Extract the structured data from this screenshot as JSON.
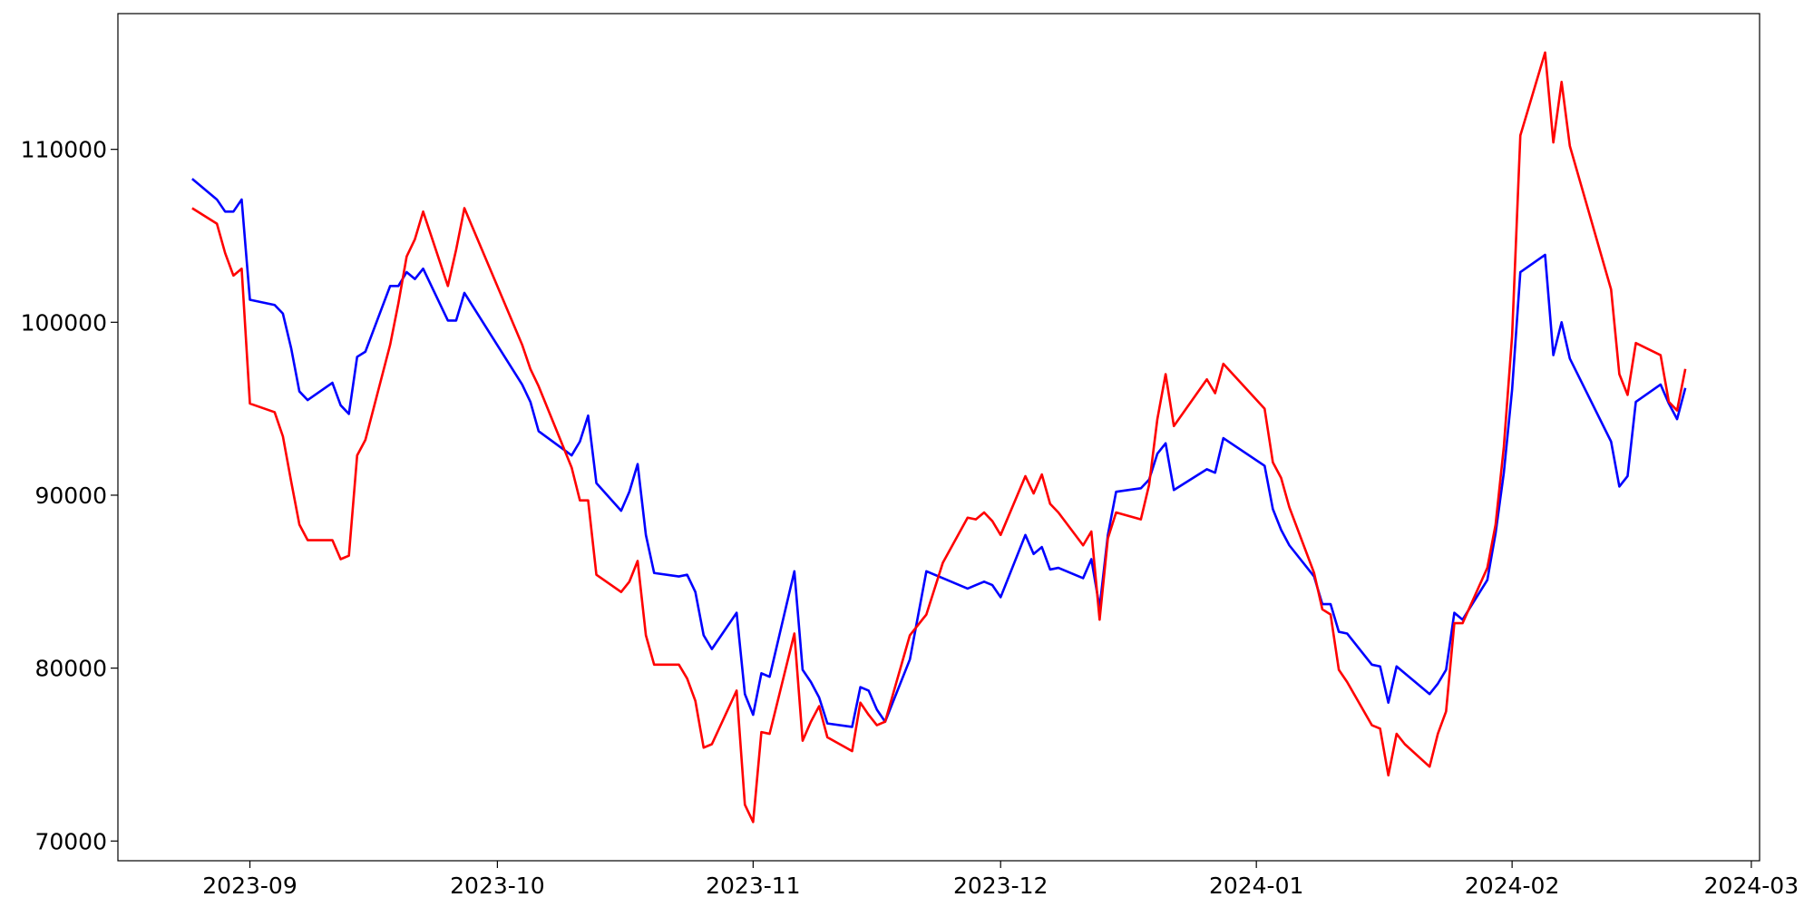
{
  "chart_data": {
    "type": "line",
    "x": [
      "2023-08-25",
      "2023-08-28",
      "2023-08-29",
      "2023-08-30",
      "2023-08-31",
      "2023-09-01",
      "2023-09-04",
      "2023-09-05",
      "2023-09-06",
      "2023-09-07",
      "2023-09-08",
      "2023-09-11",
      "2023-09-12",
      "2023-09-13",
      "2023-09-14",
      "2023-09-15",
      "2023-09-18",
      "2023-09-19",
      "2023-09-20",
      "2023-09-21",
      "2023-09-22",
      "2023-09-25",
      "2023-09-26",
      "2023-09-27",
      "2023-10-04",
      "2023-10-05",
      "2023-10-06",
      "2023-10-10",
      "2023-10-11",
      "2023-10-12",
      "2023-10-13",
      "2023-10-16",
      "2023-10-17",
      "2023-10-18",
      "2023-10-19",
      "2023-10-20",
      "2023-10-23",
      "2023-10-24",
      "2023-10-25",
      "2023-10-26",
      "2023-10-27",
      "2023-10-30",
      "2023-10-31",
      "2023-11-01",
      "2023-11-02",
      "2023-11-03",
      "2023-11-06",
      "2023-11-07",
      "2023-11-08",
      "2023-11-09",
      "2023-11-10",
      "2023-11-13",
      "2023-11-14",
      "2023-11-15",
      "2023-11-16",
      "2023-11-17",
      "2023-11-20",
      "2023-11-22",
      "2023-11-24",
      "2023-11-27",
      "2023-11-28",
      "2023-11-29",
      "2023-11-30",
      "2023-12-01",
      "2023-12-04",
      "2023-12-05",
      "2023-12-06",
      "2023-12-07",
      "2023-12-08",
      "2023-12-11",
      "2023-12-12",
      "2023-12-13",
      "2023-12-14",
      "2023-12-15",
      "2023-12-18",
      "2023-12-19",
      "2023-12-20",
      "2023-12-21",
      "2023-12-22",
      "2023-12-26",
      "2023-12-27",
      "2023-12-28",
      "2024-01-02",
      "2024-01-03",
      "2024-01-04",
      "2024-01-05",
      "2024-01-08",
      "2024-01-09",
      "2024-01-10",
      "2024-01-11",
      "2024-01-12",
      "2024-01-15",
      "2024-01-16",
      "2024-01-17",
      "2024-01-18",
      "2024-01-19",
      "2024-01-22",
      "2024-01-23",
      "2024-01-24",
      "2024-01-25",
      "2024-01-26",
      "2024-01-29",
      "2024-01-30",
      "2024-01-31",
      "2024-02-01",
      "2024-02-02",
      "2024-02-05",
      "2024-02-06",
      "2024-02-07",
      "2024-02-08",
      "2024-02-13",
      "2024-02-14",
      "2024-02-15",
      "2024-02-16",
      "2024-02-19",
      "2024-02-20",
      "2024-02-21",
      "2024-02-22"
    ],
    "series": [
      {
        "color": "blue",
        "values": [
          108300,
          107100,
          106400,
          106400,
          107100,
          101300,
          101000,
          100500,
          98500,
          96000,
          95500,
          96500,
          95200,
          94700,
          98000,
          98300,
          102100,
          102100,
          102900,
          102500,
          103100,
          100100,
          100100,
          101700,
          96400,
          95400,
          93700,
          92300,
          93100,
          94600,
          90700,
          89100,
          90200,
          91800,
          87700,
          85500,
          85300,
          85400,
          84400,
          81900,
          81100,
          83200,
          78500,
          77300,
          79700,
          79500,
          85600,
          79900,
          79200,
          78300,
          76800,
          76600,
          78900,
          78700,
          77600,
          76900,
          80500,
          85600,
          85200,
          84600,
          84800,
          85000,
          84800,
          84100,
          87700,
          86600,
          87000,
          85700,
          85800,
          85200,
          86300,
          83500,
          87700,
          90200,
          90400,
          90900,
          92400,
          93000,
          90300,
          91500,
          91300,
          93300,
          91700,
          89200,
          88000,
          87100,
          85300,
          83700,
          83700,
          82100,
          82000,
          80200,
          80100,
          78000,
          80100,
          79700,
          78500,
          79100,
          79900,
          83200,
          82800,
          85100,
          87800,
          91300,
          96100,
          102900,
          103900,
          98100,
          100000,
          97900,
          93100,
          90500,
          91100,
          95400,
          96400,
          95300,
          94400,
          96200
        ]
      },
      {
        "color": "red",
        "values": [
          106600,
          105700,
          104000,
          102700,
          103100,
          95300,
          94800,
          93400,
          90800,
          88300,
          87400,
          87400,
          86300,
          86500,
          92300,
          93200,
          98700,
          101100,
          103800,
          104800,
          106400,
          102100,
          104200,
          106600,
          98700,
          97300,
          96300,
          91600,
          89700,
          89700,
          85400,
          84400,
          85000,
          86200,
          81900,
          80200,
          80200,
          79400,
          78100,
          75400,
          75600,
          78700,
          72100,
          71100,
          76300,
          76200,
          82000,
          75800,
          76900,
          77800,
          76000,
          75200,
          78000,
          77300,
          76700,
          76900,
          81900,
          83100,
          86100,
          88700,
          88600,
          89000,
          88500,
          87700,
          91100,
          90100,
          91200,
          89500,
          89000,
          87100,
          87900,
          82800,
          87500,
          89000,
          88600,
          90600,
          94400,
          97000,
          94000,
          96700,
          95900,
          97600,
          95000,
          91900,
          91000,
          89300,
          85500,
          83400,
          83100,
          79900,
          79200,
          76700,
          76500,
          73800,
          76200,
          75600,
          74300,
          76200,
          77500,
          82600,
          82600,
          85800,
          88300,
          92800,
          99200,
          110800,
          115600,
          110400,
          113900,
          110200,
          101900,
          97000,
          95800,
          98800,
          98100,
          95400,
          94900,
          97300
        ]
      }
    ],
    "xlim": [
      "2023-08-16",
      "2024-03-02"
    ],
    "xticks": [
      "2023-09",
      "2023-10",
      "2023-11",
      "2023-12",
      "2024-01",
      "2024-02",
      "2024-03"
    ],
    "ylim": [
      68860,
      117850
    ],
    "yticks": [
      70000,
      80000,
      90000,
      100000,
      110000
    ],
    "grid": false
  }
}
